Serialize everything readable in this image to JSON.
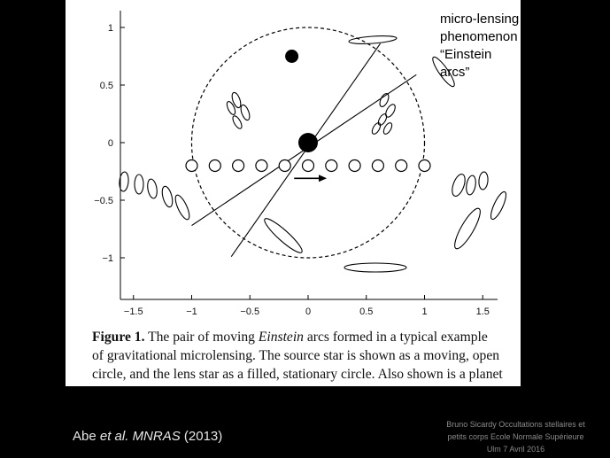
{
  "figure": {
    "annotation": [
      "micro-lensing",
      "phenomenon",
      "“Einstein arcs”"
    ],
    "caption": {
      "figure_label": "Figure 1.",
      "line1_pre": "The pair of moving ",
      "line1_em": "Einstein",
      "line1_post": " arcs formed in a typical example",
      "line2": "of gravitational microlensing. The source star is shown as a moving, open",
      "line3": "circle, and the lens star as a filled, stationary circle. Also shown is a planet"
    }
  },
  "citation": {
    "authors": "Abe ",
    "etal": "et al.",
    "journal": "MNRAS",
    "year": " (2013)"
  },
  "footer": [
    "Bruno Sicardy   Occultations stellaires et",
    "petits corps   Ecole Normale Supérieure",
    "Ulm   7 Avril 2016"
  ],
  "chart_data": {
    "type": "scatter",
    "xlim": [
      -1.6,
      1.6
    ],
    "ylim": [
      -1.3,
      1.05
    ],
    "x_ticks": [
      -1.5,
      -1,
      -0.5,
      0,
      0.5,
      1,
      1.5
    ],
    "x_tick_labels": [
      "−1.5",
      "−1",
      "−0.5",
      "0",
      "0.5",
      "1",
      "1.5"
    ],
    "y_ticks": [
      1,
      0.5,
      0,
      -0.5,
      -1
    ],
    "y_tick_labels": [
      "1",
      "0.5",
      "0",
      "−0.5",
      "−1"
    ],
    "einstein_ring_radius": 1,
    "lens_star": {
      "x": 0,
      "y": 0
    },
    "planet": {
      "x": -0.14,
      "y": 0.75
    },
    "source_positions": {
      "y": -0.2,
      "x": [
        -1.0,
        -0.8,
        -0.6,
        -0.4,
        -0.2,
        0.0,
        0.2,
        0.4,
        0.6,
        0.8,
        1.0
      ]
    },
    "motion_arrow": {
      "x0": -0.12,
      "x1": 0.16,
      "y": -0.31
    },
    "lines": [
      {
        "x0": -1.0,
        "y0": -0.72,
        "x1": 0.93,
        "y1": 0.59
      },
      {
        "x0": -0.66,
        "y0": -0.99,
        "x1": 0.62,
        "y1": 0.86
      }
    ]
  }
}
